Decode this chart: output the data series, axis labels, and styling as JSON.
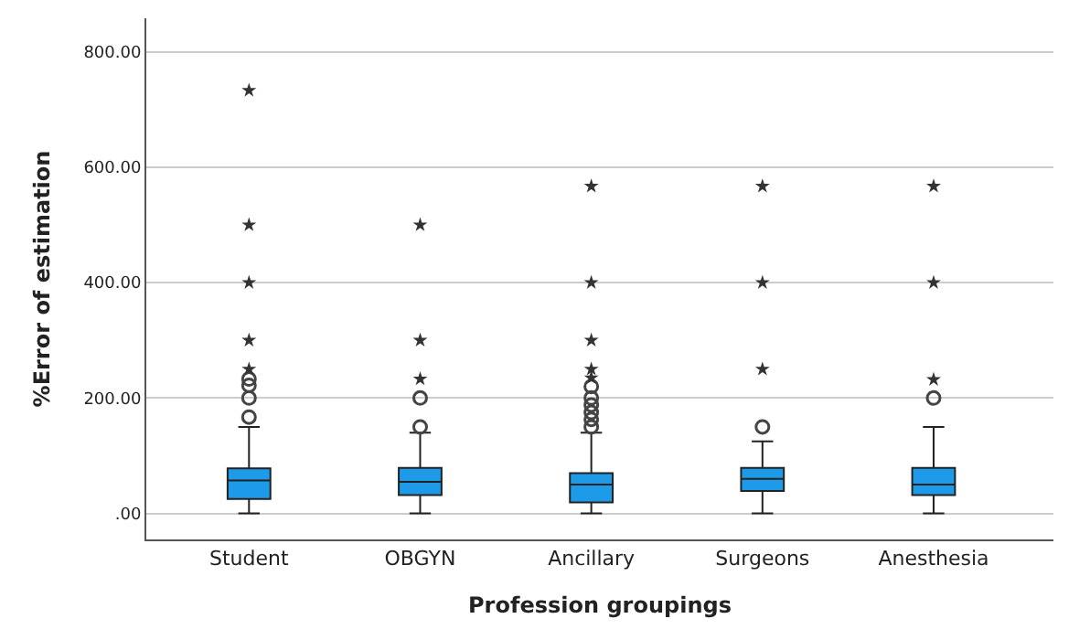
{
  "chart_data": {
    "type": "box",
    "xlabel": "Profession groupings",
    "ylabel": "%Error of estimation",
    "categories": [
      "Student",
      "OBGYN",
      "Ancillary",
      "Surgeons",
      "Anesthesia"
    ],
    "series": [
      {
        "color": "#1e9be8",
        "boxes": [
          {
            "low": 0,
            "q1": 25,
            "median": 57,
            "q3": 78,
            "high": 150,
            "outliers": [
              167,
              200,
              222,
              233
            ]
          },
          {
            "low": 0,
            "q1": 32,
            "median": 55,
            "q3": 79,
            "high": 140,
            "outliers": [
              150,
              200
            ]
          },
          {
            "low": 0,
            "q1": 19,
            "median": 50,
            "q3": 70,
            "high": 140,
            "outliers": [
              150,
              163,
              175,
              188,
              200,
              220
            ]
          },
          {
            "low": 0,
            "q1": 39,
            "median": 60,
            "q3": 79,
            "high": 125,
            "outliers": [
              150
            ]
          },
          {
            "low": 0,
            "q1": 32,
            "median": 50,
            "q3": 79,
            "high": 150,
            "outliers": [
              200
            ]
          }
        ]
      },
      {
        "type": "scatter",
        "marker": "star",
        "color": "#333333",
        "x": [
          "Student",
          "Student",
          "Student",
          "Student",
          "Student",
          "OBGYN",
          "OBGYN",
          "OBGYN",
          "Ancillary",
          "Ancillary",
          "Ancillary",
          "Ancillary",
          "Ancillary",
          "Surgeons",
          "Surgeons",
          "Surgeons",
          "Anesthesia",
          "Anesthesia",
          "Anesthesia"
        ],
        "values": [
          250,
          300,
          400,
          500,
          733,
          233,
          300,
          500,
          235,
          250,
          300,
          400,
          567,
          250,
          400,
          567,
          232,
          400,
          567
        ]
      }
    ],
    "ylim": [
      -45,
      858
    ],
    "yticks": [
      {
        "value": 0,
        "label": ".00"
      },
      {
        "value": 200,
        "label": "200.00"
      },
      {
        "value": 400,
        "label": "400.00"
      },
      {
        "value": 600,
        "label": "600.00"
      },
      {
        "value": 800,
        "label": "800.00"
      }
    ],
    "grid": "y"
  }
}
